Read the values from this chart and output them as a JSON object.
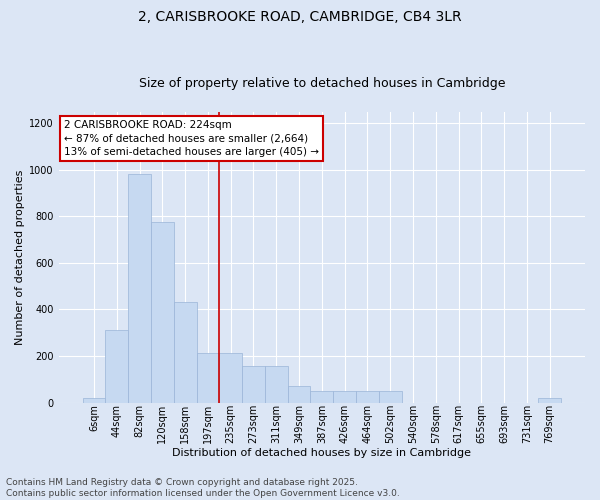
{
  "title": "2, CARISBROOKE ROAD, CAMBRIDGE, CB4 3LR",
  "subtitle": "Size of property relative to detached houses in Cambridge",
  "xlabel": "Distribution of detached houses by size in Cambridge",
  "ylabel": "Number of detached properties",
  "categories": [
    "6sqm",
    "44sqm",
    "82sqm",
    "120sqm",
    "158sqm",
    "197sqm",
    "235sqm",
    "273sqm",
    "311sqm",
    "349sqm",
    "387sqm",
    "426sqm",
    "464sqm",
    "502sqm",
    "540sqm",
    "578sqm",
    "617sqm",
    "655sqm",
    "693sqm",
    "731sqm",
    "769sqm"
  ],
  "values": [
    20,
    310,
    980,
    775,
    430,
    215,
    215,
    155,
    155,
    70,
    50,
    50,
    50,
    50,
    0,
    0,
    0,
    0,
    0,
    0,
    20
  ],
  "bar_color": "#c6d9f1",
  "bar_edge_color": "#9ab4d8",
  "background_color": "#dce6f5",
  "plot_bg_color": "#dce6f5",
  "grid_color": "#ffffff",
  "vline_x_index": 6,
  "vline_color": "#cc0000",
  "annotation_text": "2 CARISBROOKE ROAD: 224sqm\n← 87% of detached houses are smaller (2,664)\n13% of semi-detached houses are larger (405) →",
  "annotation_box_color": "#ffffff",
  "annotation_box_edge": "#cc0000",
  "ylim": [
    0,
    1250
  ],
  "yticks": [
    0,
    200,
    400,
    600,
    800,
    1000,
    1200
  ],
  "footer_text": "Contains HM Land Registry data © Crown copyright and database right 2025.\nContains public sector information licensed under the Open Government Licence v3.0.",
  "title_fontsize": 10,
  "subtitle_fontsize": 9,
  "xlabel_fontsize": 8,
  "ylabel_fontsize": 8,
  "tick_fontsize": 7,
  "annotation_fontsize": 7.5,
  "footer_fontsize": 6.5
}
